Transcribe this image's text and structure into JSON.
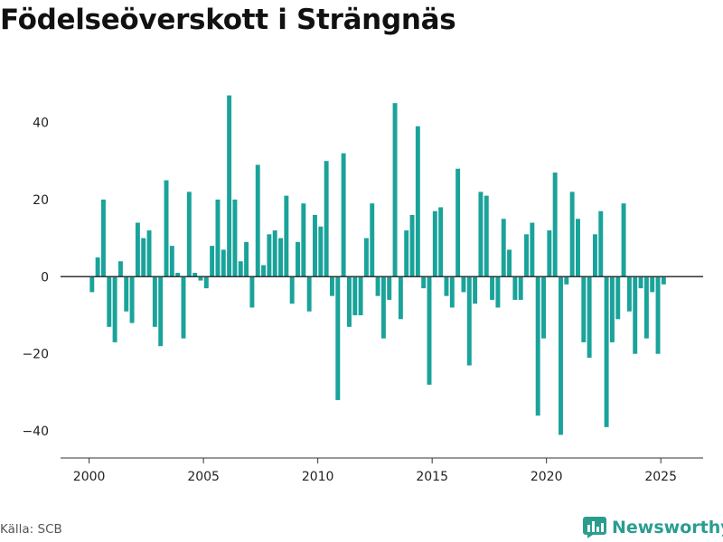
{
  "title": "Födelseöverskott i Strängnäs",
  "source": "Källa: SCB",
  "brand": {
    "name": "Newsworthy",
    "icon": "bar-chart-logo-icon"
  },
  "colors": {
    "bar": "#1aa39a",
    "axis": "#333333",
    "grid": "#dddddd",
    "brand": "#2a9d8f"
  },
  "chart_data": {
    "type": "bar",
    "title": "Födelseöverskott i Strängnäs",
    "xlabel": "",
    "ylabel": "",
    "xlim": [
      1998.75,
      2026.85
    ],
    "ylim": [
      -47,
      53
    ],
    "x_ticks": [
      2000,
      2005,
      2010,
      2015,
      2020,
      2025
    ],
    "y_ticks": [
      40,
      20,
      0,
      -20,
      -40
    ],
    "y_tick_labels": [
      "40",
      "20",
      "0",
      "−20",
      "−40"
    ],
    "grid": false,
    "legend": "none",
    "series": [
      {
        "points": [
          {
            "x": 2000.125,
            "y": -4
          },
          {
            "x": 2000.375,
            "y": 5
          },
          {
            "x": 2000.625,
            "y": 20
          },
          {
            "x": 2000.875,
            "y": -13
          },
          {
            "x": 2001.125,
            "y": -17
          },
          {
            "x": 2001.375,
            "y": 4
          },
          {
            "x": 2001.625,
            "y": -9
          },
          {
            "x": 2001.875,
            "y": -12
          },
          {
            "x": 2002.125,
            "y": 14
          },
          {
            "x": 2002.375,
            "y": 10
          },
          {
            "x": 2002.625,
            "y": 12
          },
          {
            "x": 2002.875,
            "y": -13
          },
          {
            "x": 2003.125,
            "y": -18
          },
          {
            "x": 2003.375,
            "y": 25
          },
          {
            "x": 2003.625,
            "y": 8
          },
          {
            "x": 2003.875,
            "y": 1
          },
          {
            "x": 2004.125,
            "y": -16
          },
          {
            "x": 2004.375,
            "y": 22
          },
          {
            "x": 2004.625,
            "y": 1
          },
          {
            "x": 2004.875,
            "y": -1
          },
          {
            "x": 2005.125,
            "y": -3
          },
          {
            "x": 2005.375,
            "y": 8
          },
          {
            "x": 2005.625,
            "y": 20
          },
          {
            "x": 2005.875,
            "y": 7
          },
          {
            "x": 2006.125,
            "y": 47
          },
          {
            "x": 2006.375,
            "y": 20
          },
          {
            "x": 2006.625,
            "y": 4
          },
          {
            "x": 2006.875,
            "y": 9
          },
          {
            "x": 2007.125,
            "y": -8
          },
          {
            "x": 2007.375,
            "y": 29
          },
          {
            "x": 2007.625,
            "y": 3
          },
          {
            "x": 2007.875,
            "y": 11
          },
          {
            "x": 2008.125,
            "y": 12
          },
          {
            "x": 2008.375,
            "y": 10
          },
          {
            "x": 2008.625,
            "y": 21
          },
          {
            "x": 2008.875,
            "y": -7
          },
          {
            "x": 2009.125,
            "y": 9
          },
          {
            "x": 2009.375,
            "y": 19
          },
          {
            "x": 2009.625,
            "y": -9
          },
          {
            "x": 2009.875,
            "y": 16
          },
          {
            "x": 2010.125,
            "y": 13
          },
          {
            "x": 2010.375,
            "y": 30
          },
          {
            "x": 2010.625,
            "y": -5
          },
          {
            "x": 2010.875,
            "y": -32
          },
          {
            "x": 2011.125,
            "y": 32
          },
          {
            "x": 2011.375,
            "y": -13
          },
          {
            "x": 2011.625,
            "y": -10
          },
          {
            "x": 2011.875,
            "y": -10
          },
          {
            "x": 2012.125,
            "y": 10
          },
          {
            "x": 2012.375,
            "y": 19
          },
          {
            "x": 2012.625,
            "y": -5
          },
          {
            "x": 2012.875,
            "y": -16
          },
          {
            "x": 2013.125,
            "y": -6
          },
          {
            "x": 2013.375,
            "y": 45
          },
          {
            "x": 2013.625,
            "y": -11
          },
          {
            "x": 2013.875,
            "y": 12
          },
          {
            "x": 2014.125,
            "y": 16
          },
          {
            "x": 2014.375,
            "y": 39
          },
          {
            "x": 2014.625,
            "y": -3
          },
          {
            "x": 2014.875,
            "y": -28
          },
          {
            "x": 2015.125,
            "y": 17
          },
          {
            "x": 2015.375,
            "y": 18
          },
          {
            "x": 2015.625,
            "y": -5
          },
          {
            "x": 2015.875,
            "y": -8
          },
          {
            "x": 2016.125,
            "y": 28
          },
          {
            "x": 2016.375,
            "y": -4
          },
          {
            "x": 2016.625,
            "y": -23
          },
          {
            "x": 2016.875,
            "y": -7
          },
          {
            "x": 2017.125,
            "y": 22
          },
          {
            "x": 2017.375,
            "y": 21
          },
          {
            "x": 2017.625,
            "y": -6
          },
          {
            "x": 2017.875,
            "y": -8
          },
          {
            "x": 2018.125,
            "y": 15
          },
          {
            "x": 2018.375,
            "y": 7
          },
          {
            "x": 2018.625,
            "y": -6
          },
          {
            "x": 2018.875,
            "y": -6
          },
          {
            "x": 2019.125,
            "y": 11
          },
          {
            "x": 2019.375,
            "y": 14
          },
          {
            "x": 2019.625,
            "y": -36
          },
          {
            "x": 2019.875,
            "y": -16
          },
          {
            "x": 2020.125,
            "y": 12
          },
          {
            "x": 2020.375,
            "y": 27
          },
          {
            "x": 2020.625,
            "y": -41
          },
          {
            "x": 2020.875,
            "y": -2
          },
          {
            "x": 2021.125,
            "y": 22
          },
          {
            "x": 2021.375,
            "y": 15
          },
          {
            "x": 2021.625,
            "y": -17
          },
          {
            "x": 2021.875,
            "y": -21
          },
          {
            "x": 2022.125,
            "y": 11
          },
          {
            "x": 2022.375,
            "y": 17
          },
          {
            "x": 2022.625,
            "y": -39
          },
          {
            "x": 2022.875,
            "y": -17
          },
          {
            "x": 2023.125,
            "y": -11
          },
          {
            "x": 2023.375,
            "y": 19
          },
          {
            "x": 2023.625,
            "y": -9
          },
          {
            "x": 2023.875,
            "y": -20
          },
          {
            "x": 2024.125,
            "y": -3
          },
          {
            "x": 2024.375,
            "y": -16
          },
          {
            "x": 2024.625,
            "y": -4
          },
          {
            "x": 2024.875,
            "y": -20
          },
          {
            "x": 2025.125,
            "y": -2
          }
        ]
      }
    ]
  }
}
